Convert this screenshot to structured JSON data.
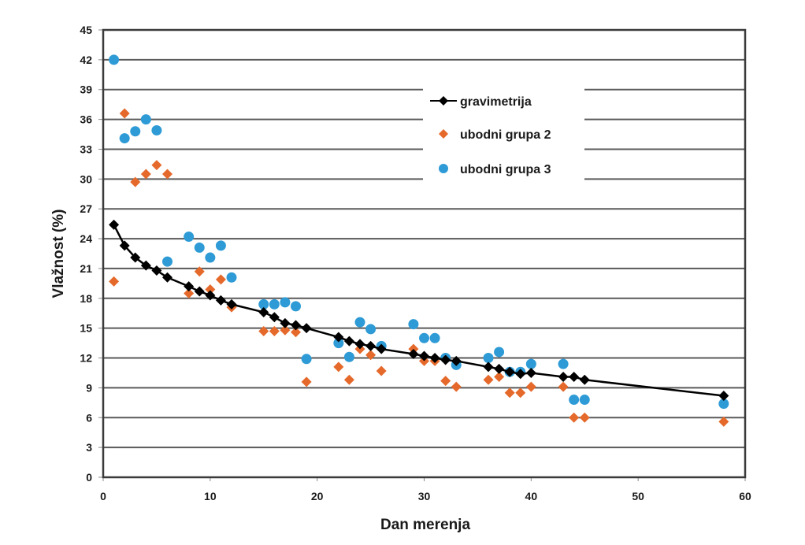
{
  "chart_data": {
    "type": "scatter",
    "title": "",
    "xlabel": "Dan merenja",
    "ylabel": "Vlažnost (%)",
    "xlim": [
      0,
      60
    ],
    "ylim": [
      0,
      45
    ],
    "xticks": [
      0,
      10,
      20,
      30,
      40,
      50,
      60
    ],
    "yticks": [
      0,
      3,
      6,
      9,
      12,
      15,
      18,
      21,
      24,
      27,
      30,
      33,
      36,
      39,
      42,
      45
    ],
    "grid": "horizontal",
    "legend_position": "top-center",
    "series": [
      {
        "name": "gravimetrija",
        "kind": "line-marker",
        "marker": "diamond",
        "color": "#000000",
        "x": [
          1,
          2,
          3,
          4,
          5,
          6,
          8,
          9,
          10,
          11,
          12,
          15,
          16,
          17,
          18,
          19,
          22,
          23,
          24,
          25,
          26,
          29,
          30,
          31,
          32,
          33,
          36,
          37,
          38,
          39,
          40,
          43,
          44,
          45,
          58
        ],
        "y": [
          25.4,
          23.3,
          22.1,
          21.3,
          20.8,
          20.1,
          19.2,
          18.7,
          18.3,
          17.8,
          17.4,
          16.6,
          16.1,
          15.5,
          15.3,
          15.0,
          14.1,
          13.7,
          13.4,
          13.2,
          12.9,
          12.4,
          12.2,
          12.0,
          11.8,
          11.7,
          11.1,
          10.9,
          10.6,
          10.4,
          10.5,
          10.1,
          10.1,
          9.8,
          8.2
        ]
      },
      {
        "name": "ubodni grupa 2",
        "kind": "marker",
        "marker": "diamond",
        "color": "#E5692B",
        "x": [
          1,
          2,
          3,
          4,
          5,
          6,
          8,
          9,
          10,
          11,
          12,
          15,
          16,
          17,
          18,
          19,
          22,
          23,
          24,
          25,
          26,
          29,
          30,
          31,
          32,
          33,
          36,
          37,
          38,
          39,
          40,
          43,
          44,
          45,
          58
        ],
        "y": [
          19.7,
          36.6,
          29.7,
          30.5,
          31.4,
          30.5,
          18.5,
          20.7,
          18.9,
          19.9,
          17.1,
          14.7,
          14.7,
          14.8,
          14.6,
          9.6,
          11.1,
          9.8,
          12.9,
          12.3,
          10.7,
          12.9,
          11.7,
          11.7,
          9.7,
          9.1,
          9.8,
          10.1,
          8.5,
          8.5,
          9.1,
          9.1,
          6.0,
          6.0,
          5.6
        ]
      },
      {
        "name": "ubodni grupa 3",
        "kind": "marker",
        "marker": "circle",
        "color": "#2E9BD6",
        "x": [
          1,
          2,
          3,
          4,
          5,
          6,
          8,
          9,
          10,
          11,
          12,
          15,
          16,
          17,
          18,
          19,
          22,
          23,
          24,
          25,
          26,
          29,
          30,
          31,
          32,
          33,
          36,
          37,
          38,
          39,
          40,
          43,
          44,
          45,
          58
        ],
        "y": [
          42.0,
          34.1,
          34.8,
          36.0,
          34.9,
          21.7,
          24.2,
          23.1,
          22.1,
          23.3,
          20.1,
          17.4,
          17.4,
          17.6,
          17.2,
          11.9,
          13.5,
          12.1,
          15.6,
          14.9,
          13.2,
          15.4,
          14.0,
          14.0,
          12.0,
          11.3,
          12.0,
          12.6,
          10.6,
          10.6,
          11.4,
          11.4,
          7.8,
          7.8,
          7.4
        ]
      }
    ]
  }
}
